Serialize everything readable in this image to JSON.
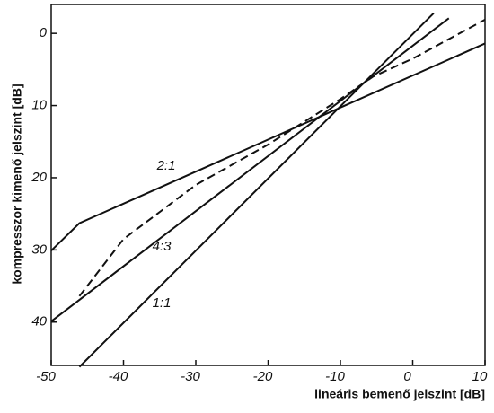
{
  "chart_data": {
    "type": "line",
    "xlabel": "lineáris bemenő jelszint [dB]",
    "ylabel": "kompresszor kimenő jelszint [dB]",
    "xlim": [
      -50,
      10
    ],
    "xticks": [
      -50,
      -40,
      -30,
      -20,
      -10,
      0,
      10
    ],
    "ylim": [
      46,
      -4
    ],
    "yticks": [
      0,
      10,
      20,
      30,
      40
    ],
    "series": [
      {
        "name": "2:1",
        "color": "#111111",
        "dashed": false,
        "x": [
          -50,
          -46.1,
          10
        ],
        "values": [
          30.1,
          26.3,
          1.4
        ]
      },
      {
        "name": "4:3",
        "color": "#111111",
        "dashed": false,
        "x": [
          -50,
          5
        ],
        "values": [
          39.9,
          -2.1
        ]
      },
      {
        "name": "1:1",
        "color": "#111111",
        "dashed": false,
        "x": [
          -46.1,
          2.9
        ],
        "values": [
          46.2,
          -2.8
        ]
      },
      {
        "color": "#111111",
        "dashed": true,
        "x": [
          -46.1,
          -40,
          -30,
          -20,
          -10,
          -5.5,
          0,
          10
        ],
        "values": [
          36.4,
          28.5,
          21,
          15.4,
          9.1,
          6,
          3.5,
          -1.9
        ]
      }
    ]
  }
}
